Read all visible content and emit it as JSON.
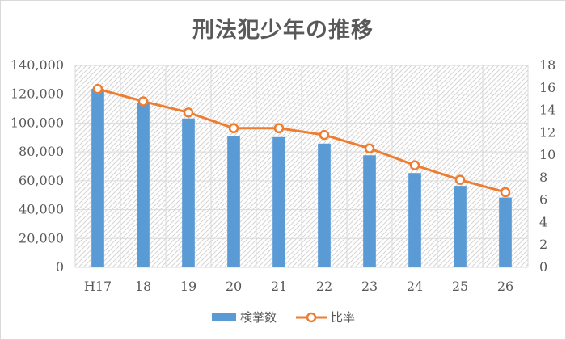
{
  "chart_data": {
    "type": "bar",
    "title": "刑法犯少年の推移",
    "categories": [
      "H17",
      "18",
      "19",
      "20",
      "21",
      "22",
      "23",
      "24",
      "25",
      "26"
    ],
    "series": [
      {
        "name": "検挙数",
        "type": "bar",
        "axis": "left",
        "color": "#5b9bd5",
        "values": [
          123700,
          113800,
          103200,
          90900,
          90300,
          85800,
          77700,
          65400,
          56500,
          48400
        ]
      },
      {
        "name": "比率",
        "type": "line",
        "axis": "right",
        "color": "#ed7d31",
        "values": [
          15.9,
          14.8,
          13.8,
          12.4,
          12.4,
          11.8,
          10.6,
          9.1,
          7.8,
          6.7
        ]
      }
    ],
    "ylim": [
      0,
      140000
    ],
    "yticks": [
      "0",
      "20,000",
      "40,000",
      "60,000",
      "80,000",
      "100,000",
      "120,000",
      "140,000"
    ],
    "y2lim": [
      0,
      18
    ],
    "y2ticks": [
      "0",
      "2",
      "4",
      "6",
      "8",
      "10",
      "12",
      "14",
      "16",
      "18"
    ],
    "grid": true,
    "legend_position": "bottom"
  }
}
